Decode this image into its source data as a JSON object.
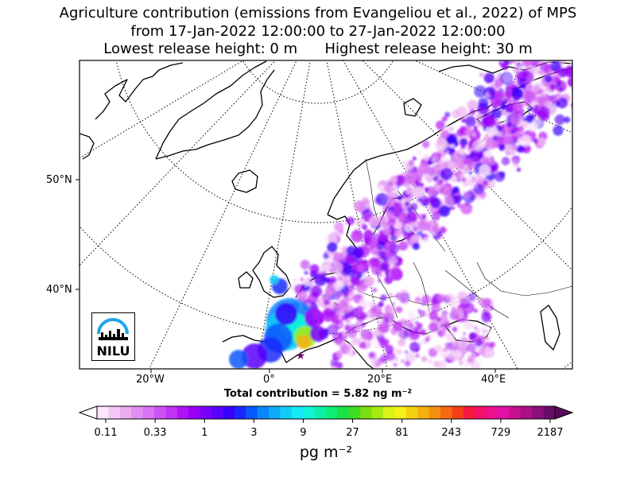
{
  "title": {
    "line1": "Agriculture contribution (emissions from Evangeliou et al., 2022) of MPS",
    "line2": "from 17-Jan-2022 12:00:00 to 27-Jan-2022 12:00:00",
    "line3": "Lowest release height: 0 m      Highest release height: 30 m"
  },
  "map": {
    "projection": "polar stereographic",
    "lat_labels": [
      "50°N",
      "40°N"
    ],
    "lon_labels": [
      "20°W",
      "0°",
      "20°E",
      "40°E"
    ],
    "graticule_style": "dotted"
  },
  "total_contribution": "Total contribution = 5.82 ng m⁻²",
  "colorbar": {
    "ticks": [
      "0.11",
      "0.33",
      "1",
      "3",
      "9",
      "27",
      "81",
      "243",
      "729",
      "2187"
    ],
    "unit": "pg m⁻²",
    "extend": "both",
    "colors": [
      "#fbe6fb",
      "#f3c8f6",
      "#ebacf0",
      "#e190f0",
      "#d873f3",
      "#cd52f5",
      "#c034f6",
      "#b012f8",
      "#9a00f8",
      "#7a00fa",
      "#5a00fb",
      "#3600fc",
      "#1a28fc",
      "#0a58fb",
      "#0a86fb",
      "#0eaaf8",
      "#12ccf6",
      "#14e8f4",
      "#10f4d8",
      "#0cf0a8",
      "#10ec78",
      "#18e248",
      "#40dc22",
      "#78e010",
      "#a8ea10",
      "#d8f418",
      "#f4f018",
      "#f4d012",
      "#f4b00e",
      "#f49010",
      "#f46a12",
      "#f4401a",
      "#f41a40",
      "#f4106a",
      "#ec1090",
      "#e010a8",
      "#c8108e",
      "#aa1088",
      "#8a1078",
      "#6a0c68"
    ]
  },
  "logo": {
    "text": "NILU",
    "accent_color": "#1ea6e6"
  }
}
